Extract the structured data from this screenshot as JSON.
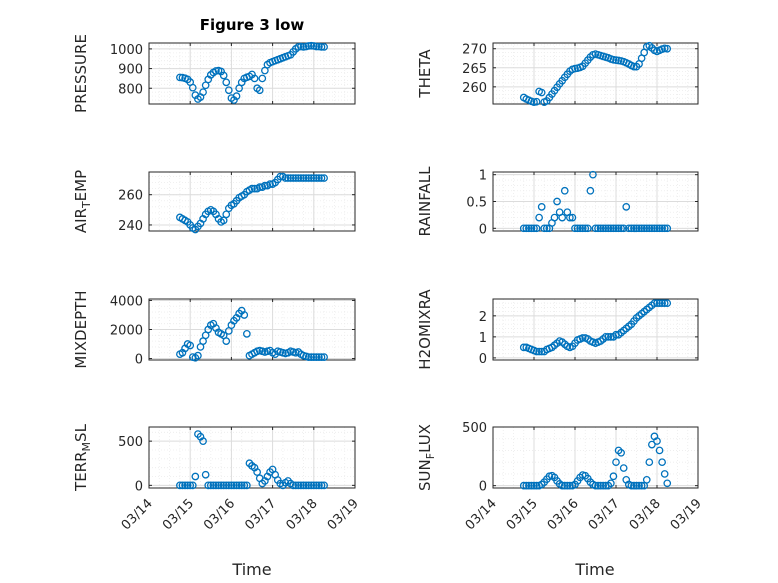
{
  "chart_data": [
    {
      "type": "scatter",
      "title": "Figure 3 low",
      "ylabel": "PRESSURE",
      "xlim": [
        "03/14",
        "03/19"
      ],
      "ylim": [
        720,
        1030
      ],
      "yticks": [
        800,
        900,
        1000
      ],
      "xticks": [
        "03/14",
        "03/15",
        "03/16",
        "03/17",
        "03/18",
        "03/19"
      ],
      "x_start": "03/14 18:00",
      "step_hours": 1.5,
      "values": [
        855,
        854,
        851,
        845,
        831,
        803,
        765,
        745,
        755,
        780,
        815,
        845,
        868,
        880,
        888,
        890,
        885,
        865,
        830,
        790,
        750,
        740,
        760,
        800,
        830,
        850,
        856,
        860,
        870,
        850,
        800,
        790,
        850,
        890,
        920,
        930,
        935,
        940,
        945,
        950,
        955,
        960,
        965,
        970,
        985,
        1000,
        1010,
        1012,
        1010,
        1012,
        1015,
        1016,
        1015,
        1012,
        1012,
        1010,
        1010
      ]
    },
    {
      "type": "scatter",
      "ylabel": "THETA",
      "xlim": [
        "03/14",
        "03/19"
      ],
      "ylim": [
        255.5,
        271.5
      ],
      "yticks": [
        260,
        265,
        270
      ],
      "xticks": [
        "03/14",
        "03/15",
        "03/16",
        "03/17",
        "03/18",
        "03/19"
      ],
      "x_start": "03/14 18:00",
      "step_hours": 1.5,
      "values": [
        257.2,
        256.8,
        256.5,
        256.2,
        256.0,
        256.1,
        258.8,
        258.5,
        256.0,
        256.3,
        257.2,
        258.1,
        259.0,
        259.9,
        260.8,
        261.6,
        262.5,
        263.3,
        264.1,
        264.6,
        264.8,
        264.9,
        265.1,
        265.4,
        266.2,
        267.0,
        267.8,
        268.4,
        268.6,
        268.4,
        268.2,
        268.0,
        267.8,
        267.6,
        267.3,
        267.1,
        267.0,
        266.9,
        266.8,
        266.6,
        266.3,
        266.0,
        265.6,
        265.3,
        265.3,
        266.0,
        267.5,
        269.0,
        270.5,
        270.8,
        270.2,
        269.6,
        269.3,
        269.6,
        269.9,
        270.1,
        270.0
      ]
    },
    {
      "type": "scatter",
      "ylabel": "AIR_TEMP",
      "xlim": [
        "03/14",
        "03/19"
      ],
      "ylim": [
        236,
        275
      ],
      "yticks": [
        240,
        260
      ],
      "xticks": [
        "03/14",
        "03/15",
        "03/16",
        "03/17",
        "03/18",
        "03/19"
      ],
      "x_start": "03/14 18:00",
      "step_hours": 1.5,
      "values": [
        245,
        244,
        243,
        242,
        240,
        238,
        237,
        239,
        241,
        244,
        247,
        249,
        250,
        249,
        247,
        244,
        242,
        243,
        247,
        251,
        253,
        254,
        256,
        258,
        259,
        260,
        262,
        263,
        264,
        264,
        264,
        265,
        265,
        266,
        266,
        267,
        267,
        268,
        270,
        272,
        272,
        271,
        271,
        271,
        271,
        271,
        271,
        271,
        271,
        271,
        271,
        271,
        271,
        271,
        271,
        271,
        271
      ]
    },
    {
      "type": "scatter",
      "ylabel": "RAINFALL",
      "xlim": [
        "03/14",
        "03/19"
      ],
      "ylim": [
        -0.05,
        1.05
      ],
      "yticks": [
        0,
        0.5,
        1
      ],
      "xticks": [
        "03/14",
        "03/15",
        "03/16",
        "03/17",
        "03/18",
        "03/19"
      ],
      "x_start": "03/14 18:00",
      "step_hours": 1.5,
      "values": [
        0,
        0,
        0,
        0,
        0,
        0,
        0.2,
        0.4,
        0,
        0,
        0,
        0.1,
        0.2,
        0.5,
        0.3,
        0.2,
        0.7,
        0.3,
        0.2,
        0.2,
        0,
        0,
        0,
        0,
        0,
        0,
        0.7,
        1.0,
        0,
        0,
        0,
        0,
        0,
        0,
        0,
        0,
        0,
        0,
        0,
        0,
        0.4,
        0,
        0,
        0,
        0,
        0,
        0,
        0,
        0,
        0,
        0,
        0,
        0,
        0,
        0,
        0,
        0
      ]
    },
    {
      "type": "scatter",
      "ylabel": "MIXDEPTH",
      "xlim": [
        "03/14",
        "03/19"
      ],
      "ylim": [
        -100,
        4100
      ],
      "yticks": [
        0,
        2000,
        4000
      ],
      "xticks": [
        "03/14",
        "03/15",
        "03/16",
        "03/17",
        "03/18",
        "03/19"
      ],
      "x_start": "03/14 18:00",
      "step_hours": 1.5,
      "values": [
        300,
        400,
        700,
        1000,
        900,
        100,
        50,
        200,
        800,
        1200,
        1600,
        2000,
        2300,
        2400,
        2100,
        1800,
        1700,
        1600,
        1200,
        1900,
        2300,
        2600,
        2800,
        3100,
        3300,
        3000,
        1700,
        200,
        300,
        400,
        500,
        550,
        500,
        450,
        500,
        550,
        400,
        300,
        500,
        450,
        400,
        350,
        400,
        500,
        450,
        400,
        450,
        300,
        200,
        150,
        100,
        100,
        100,
        100,
        100,
        100,
        100
      ]
    },
    {
      "type": "scatter",
      "ylabel": "H2OMIXRA",
      "xlim": [
        "03/14",
        "03/19"
      ],
      "ylim": [
        -0.1,
        2.8
      ],
      "yticks": [
        0,
        1,
        2
      ],
      "xticks": [
        "03/14",
        "03/15",
        "03/16",
        "03/17",
        "03/18",
        "03/19"
      ],
      "x_start": "03/14 18:00",
      "step_hours": 1.5,
      "values": [
        0.5,
        0.5,
        0.45,
        0.4,
        0.35,
        0.3,
        0.3,
        0.3,
        0.3,
        0.4,
        0.45,
        0.5,
        0.6,
        0.7,
        0.8,
        0.75,
        0.65,
        0.55,
        0.5,
        0.55,
        0.7,
        0.85,
        0.9,
        0.95,
        0.95,
        0.9,
        0.8,
        0.75,
        0.7,
        0.75,
        0.8,
        0.9,
        1.0,
        1.0,
        1.0,
        1.0,
        1.1,
        1.1,
        1.2,
        1.3,
        1.4,
        1.5,
        1.6,
        1.75,
        1.9,
        2.0,
        2.1,
        2.2,
        2.3,
        2.4,
        2.5,
        2.6,
        2.6,
        2.6,
        2.6,
        2.6,
        2.6
      ]
    },
    {
      "type": "scatter",
      "ylabel": "TERR_MSL",
      "xlim": [
        "03/14",
        "03/19"
      ],
      "ylim": [
        -30,
        660
      ],
      "yticks": [
        0,
        500
      ],
      "xticks": [
        "03/14",
        "03/15",
        "03/16",
        "03/17",
        "03/18",
        "03/19"
      ],
      "x_start": "03/14 18:00",
      "step_hours": 1.5,
      "values": [
        0,
        0,
        0,
        0,
        0,
        0,
        100,
        580,
        550,
        500,
        120,
        0,
        0,
        0,
        0,
        0,
        0,
        0,
        0,
        0,
        0,
        0,
        0,
        0,
        0,
        0,
        0,
        250,
        220,
        200,
        150,
        80,
        20,
        50,
        100,
        150,
        180,
        120,
        60,
        20,
        0,
        30,
        50,
        20,
        0,
        0,
        0,
        0,
        0,
        0,
        0,
        0,
        0,
        0,
        0,
        0,
        0
      ]
    },
    {
      "type": "scatter",
      "ylabel": "SUN_FLUX",
      "xlim": [
        "03/14",
        "03/19"
      ],
      "ylim": [
        -20,
        500
      ],
      "yticks": [
        0,
        500
      ],
      "xticks": [
        "03/14",
        "03/15",
        "03/16",
        "03/17",
        "03/18",
        "03/19"
      ],
      "x_start": "03/14 18:00",
      "step_hours": 1.5,
      "values": [
        0,
        0,
        0,
        0,
        0,
        0,
        0,
        10,
        30,
        55,
        80,
        85,
        70,
        40,
        15,
        0,
        0,
        0,
        0,
        0,
        10,
        40,
        70,
        90,
        85,
        60,
        30,
        10,
        0,
        0,
        0,
        0,
        0,
        0,
        20,
        80,
        200,
        300,
        280,
        150,
        50,
        10,
        0,
        0,
        0,
        0,
        0,
        0,
        50,
        200,
        350,
        420,
        380,
        300,
        200,
        100,
        20
      ]
    }
  ],
  "time_label": "Time",
  "x_tick_labels": [
    "03/14",
    "03/15",
    "03/16",
    "03/17",
    "03/18",
    "03/19"
  ],
  "colors": {
    "marker": "#0072bd",
    "axes": "#262626",
    "grid": "#dcdcdc",
    "minor_grid": "#ececec"
  }
}
